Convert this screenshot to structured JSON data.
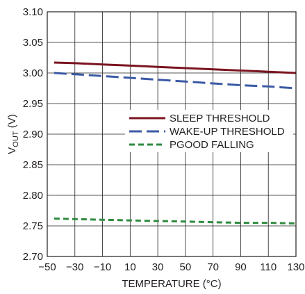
{
  "chart_data": {
    "type": "line",
    "title": "",
    "xlabel": "TEMPERATURE (°C)",
    "ylabel_main": "V",
    "ylabel_sub": "OUT",
    "ylabel_unit": " (V)",
    "xlim": [
      -50,
      130
    ],
    "ylim": [
      2.7,
      3.1
    ],
    "x_ticks": [
      "−50",
      "−30",
      "−10",
      "10",
      "30",
      "50",
      "70",
      "90",
      "110",
      "130"
    ],
    "x_tick_values": [
      -50,
      -30,
      -10,
      10,
      30,
      50,
      70,
      90,
      110,
      130
    ],
    "y_ticks": [
      "2.70",
      "2.75",
      "2.80",
      "2.85",
      "2.90",
      "2.95",
      "3.00",
      "3.05",
      "3.10"
    ],
    "y_tick_values": [
      2.7,
      2.75,
      2.8,
      2.85,
      2.9,
      2.95,
      3.0,
      3.05,
      3.1
    ],
    "grid": true,
    "legend_position": "right-center",
    "series": [
      {
        "name": "SLEEP THRESHOLD",
        "color": "#7a1420",
        "dash": "solid",
        "x": [
          -45,
          -30,
          -10,
          10,
          30,
          50,
          70,
          90,
          110,
          130
        ],
        "y": [
          3.017,
          3.016,
          3.014,
          3.012,
          3.01,
          3.008,
          3.006,
          3.004,
          3.002,
          3.0
        ]
      },
      {
        "name": "WAKE-UP THRESHOLD",
        "color": "#3b5aa6",
        "dash": "long-dash",
        "x": [
          -45,
          -30,
          -10,
          10,
          30,
          50,
          70,
          90,
          110,
          130
        ],
        "y": [
          3.0,
          2.998,
          2.995,
          2.992,
          2.989,
          2.986,
          2.983,
          2.98,
          2.978,
          2.975
        ]
      },
      {
        "name": "PGOOD FALLING",
        "color": "#2e8b3e",
        "dash": "short-dash",
        "x": [
          -45,
          -30,
          -10,
          10,
          30,
          50,
          70,
          90,
          110,
          130
        ],
        "y": [
          2.762,
          2.761,
          2.76,
          2.759,
          2.758,
          2.757,
          2.756,
          2.755,
          2.755,
          2.754
        ]
      }
    ]
  }
}
